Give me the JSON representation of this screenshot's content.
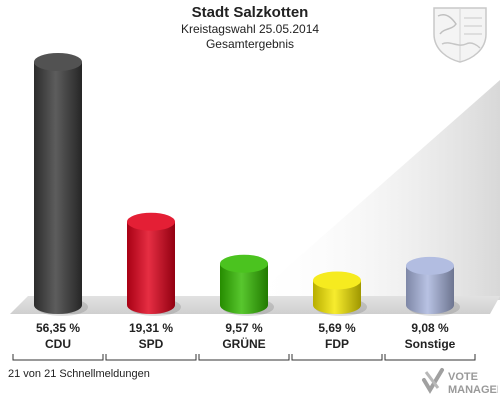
{
  "header": {
    "title": "Stadt Salzkotten",
    "subtitle_1": "Kreistagswahl 25.05.2014",
    "subtitle_2": "Gesamtergebnis"
  },
  "footer": {
    "note": "21 von 21 Schnellmeldungen",
    "logo_line1": "VOTE",
    "logo_line2": "MANAGER"
  },
  "chart_data": {
    "type": "bar",
    "categories": [
      "CDU",
      "SPD",
      "GRÜNE",
      "FDP",
      "Sonstige"
    ],
    "values": [
      56.35,
      19.31,
      9.57,
      5.69,
      9.08
    ],
    "value_labels": [
      "56,35 %",
      "19,31 %",
      "9,57 %",
      "5,69 %",
      "9,08 %"
    ],
    "colors": [
      "#3a3a3a",
      "#e0001a",
      "#33bb00",
      "#f5e800",
      "#a8b4dd"
    ],
    "ylim": [
      0,
      56.35
    ],
    "grid": false,
    "legend": "none"
  }
}
